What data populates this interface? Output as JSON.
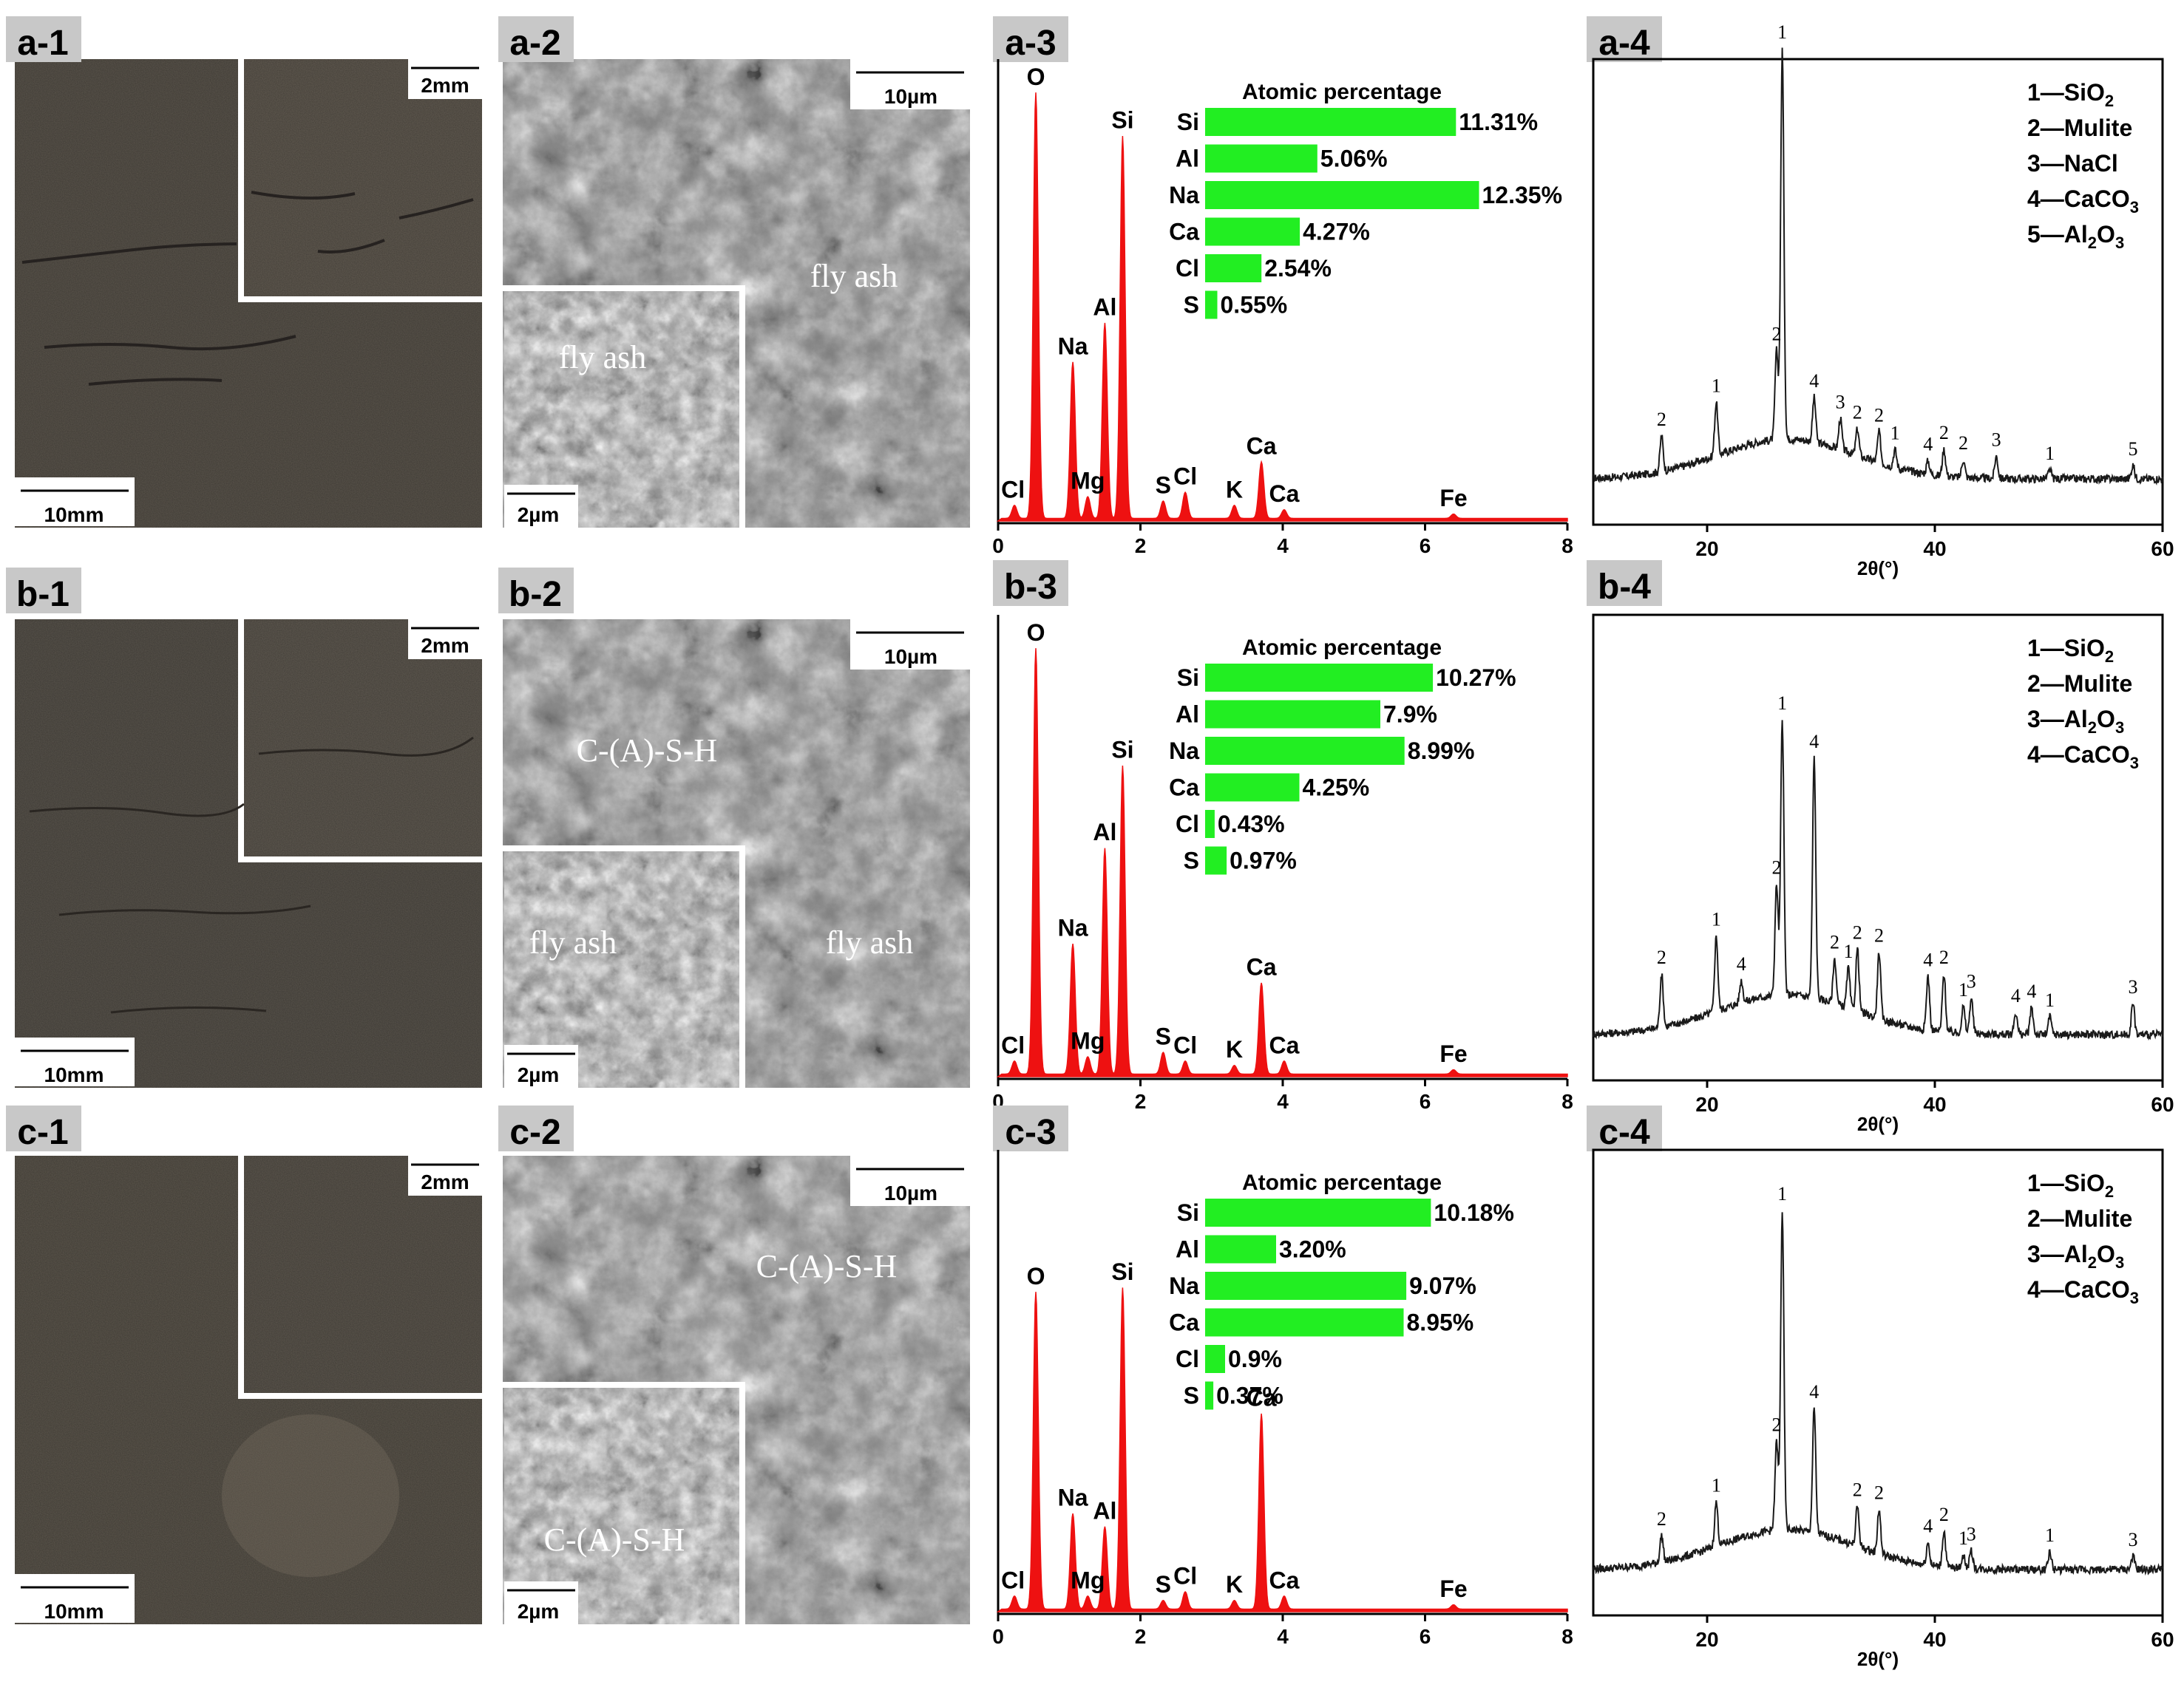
{
  "rows": [
    {
      "id": "a",
      "photo": {
        "label": "a-1",
        "scale_main": "10mm",
        "scale_inset": "2mm"
      },
      "sem": {
        "label": "a-2",
        "scale_main": "10µm",
        "scale_inset": "2µm",
        "text_main": "fly ash",
        "text_inset": "fly ash"
      },
      "eds": {
        "label": "a-3",
        "bar_title": "Atomic percentage",
        "bars": [
          {
            "element": "Si",
            "value": 11.31,
            "text": "11.31%"
          },
          {
            "element": "Al",
            "value": 5.06,
            "text": "5.06%"
          },
          {
            "element": "Na",
            "value": 12.35,
            "text": "12.35%"
          },
          {
            "element": "Ca",
            "value": 4.27,
            "text": "4.27%"
          },
          {
            "element": "Cl",
            "value": 2.54,
            "text": "2.54%"
          },
          {
            "element": "S",
            "value": 0.55,
            "text": "0.55%"
          }
        ],
        "peaks": [
          {
            "label": "Cl",
            "x": 0.23,
            "h": 0.03
          },
          {
            "label": "O",
            "x": 0.53,
            "h": 0.98
          },
          {
            "label": "Na",
            "x": 1.05,
            "h": 0.36
          },
          {
            "label": "Mg",
            "x": 1.26,
            "h": 0.05
          },
          {
            "label": "Al",
            "x": 1.5,
            "h": 0.45
          },
          {
            "label": "Si",
            "x": 1.75,
            "h": 0.88
          },
          {
            "label": "S",
            "x": 2.32,
            "h": 0.04
          },
          {
            "label": "Cl",
            "x": 2.63,
            "h": 0.06
          },
          {
            "label": "K",
            "x": 3.32,
            "h": 0.03
          },
          {
            "label": "Ca",
            "x": 3.7,
            "h": 0.13
          },
          {
            "label": "Ca",
            "x": 4.02,
            "h": 0.02
          },
          {
            "label": "Fe",
            "x": 6.4,
            "h": 0.01
          }
        ],
        "x_ticks": [
          "0",
          "2",
          "4",
          "6",
          "8"
        ]
      },
      "xrd": {
        "label": "a-4",
        "legend": [
          {
            "num": "1",
            "name": "SiO",
            "sub": "2"
          },
          {
            "num": "2",
            "name": "Mulite",
            "sub": ""
          },
          {
            "num": "3",
            "name": "NaCl",
            "sub": ""
          },
          {
            "num": "4",
            "name": "CaCO",
            "sub": "3"
          },
          {
            "num": "5",
            "name": "Al",
            "sub": "2",
            "tail": "O",
            "sub2": "3"
          }
        ],
        "peaks": [
          {
            "t": 16.0,
            "h": 0.08,
            "l": "2"
          },
          {
            "t": 20.8,
            "h": 0.12,
            "l": "1"
          },
          {
            "t": 26.1,
            "h": 0.2,
            "l": "2"
          },
          {
            "t": 26.6,
            "h": 0.88,
            "l": "1"
          },
          {
            "t": 29.4,
            "h": 0.1,
            "l": "4"
          },
          {
            "t": 31.7,
            "h": 0.07,
            "l": "3"
          },
          {
            "t": 33.2,
            "h": 0.06,
            "l": "2"
          },
          {
            "t": 35.1,
            "h": 0.07,
            "l": "2"
          },
          {
            "t": 36.5,
            "h": 0.04,
            "l": "1"
          },
          {
            "t": 39.4,
            "h": 0.03,
            "l": "4"
          },
          {
            "t": 40.8,
            "h": 0.06,
            "l": "2"
          },
          {
            "t": 42.5,
            "h": 0.04,
            "l": "2"
          },
          {
            "t": 45.4,
            "h": 0.05,
            "l": "3"
          },
          {
            "t": 50.1,
            "h": 0.02,
            "l": "1"
          },
          {
            "t": 57.4,
            "h": 0.03,
            "l": "5"
          }
        ],
        "x_ticks": [
          "20",
          "40",
          "60"
        ],
        "xlabel": "2θ(°)"
      }
    },
    {
      "id": "b",
      "photo": {
        "label": "b-1",
        "scale_main": "10mm",
        "scale_inset": "2mm"
      },
      "sem": {
        "label": "b-2",
        "scale_main": "10µm",
        "scale_inset": "2µm",
        "text_main": "C-(A)-S-H",
        "text_inset": "fly ash",
        "text_extra": "fly ash"
      },
      "eds": {
        "label": "b-3",
        "bar_title": "Atomic percentage",
        "bars": [
          {
            "element": "Si",
            "value": 10.27,
            "text": "10.27%"
          },
          {
            "element": "Al",
            "value": 7.9,
            "text": "7.9%"
          },
          {
            "element": "Na",
            "value": 8.99,
            "text": "8.99%"
          },
          {
            "element": "Ca",
            "value": 4.25,
            "text": "4.25%"
          },
          {
            "element": "Cl",
            "value": 0.43,
            "text": "0.43%"
          },
          {
            "element": "S",
            "value": 0.97,
            "text": "0.97%"
          }
        ],
        "peaks": [
          {
            "label": "Cl",
            "x": 0.23,
            "h": 0.03
          },
          {
            "label": "O",
            "x": 0.53,
            "h": 0.98
          },
          {
            "label": "Na",
            "x": 1.05,
            "h": 0.3
          },
          {
            "label": "Mg",
            "x": 1.26,
            "h": 0.04
          },
          {
            "label": "Al",
            "x": 1.5,
            "h": 0.52
          },
          {
            "label": "Si",
            "x": 1.75,
            "h": 0.71
          },
          {
            "label": "S",
            "x": 2.32,
            "h": 0.05
          },
          {
            "label": "Cl",
            "x": 2.63,
            "h": 0.03
          },
          {
            "label": "K",
            "x": 3.32,
            "h": 0.02
          },
          {
            "label": "Ca",
            "x": 3.7,
            "h": 0.21
          },
          {
            "label": "Ca",
            "x": 4.02,
            "h": 0.03
          },
          {
            "label": "Fe",
            "x": 6.4,
            "h": 0.01
          }
        ],
        "x_ticks": [
          "0",
          "2",
          "4",
          "6",
          "8"
        ]
      },
      "xrd": {
        "label": "b-4",
        "legend": [
          {
            "num": "1",
            "name": "SiO",
            "sub": "2"
          },
          {
            "num": "2",
            "name": "Mulite",
            "sub": ""
          },
          {
            "num": "3",
            "name": "Al",
            "sub": "2",
            "tail": "O",
            "sub2": "3"
          },
          {
            "num": "4",
            "name": "CaCO",
            "sub": "3"
          }
        ],
        "peaks": [
          {
            "t": 16.0,
            "h": 0.12,
            "l": "2"
          },
          {
            "t": 20.8,
            "h": 0.17,
            "l": "1"
          },
          {
            "t": 23.0,
            "h": 0.05,
            "l": "4"
          },
          {
            "t": 26.1,
            "h": 0.25,
            "l": "2"
          },
          {
            "t": 26.6,
            "h": 0.62,
            "l": "1"
          },
          {
            "t": 29.4,
            "h": 0.54,
            "l": "4"
          },
          {
            "t": 31.2,
            "h": 0.1,
            "l": "2"
          },
          {
            "t": 32.4,
            "h": 0.09,
            "l": "1"
          },
          {
            "t": 33.2,
            "h": 0.14,
            "l": "2"
          },
          {
            "t": 35.1,
            "h": 0.15,
            "l": "2"
          },
          {
            "t": 39.4,
            "h": 0.12,
            "l": "4"
          },
          {
            "t": 40.8,
            "h": 0.13,
            "l": "2"
          },
          {
            "t": 42.5,
            "h": 0.06,
            "l": "1"
          },
          {
            "t": 43.2,
            "h": 0.08,
            "l": "3"
          },
          {
            "t": 47.1,
            "h": 0.05,
            "l": "4"
          },
          {
            "t": 48.5,
            "h": 0.06,
            "l": "4"
          },
          {
            "t": 50.1,
            "h": 0.04,
            "l": "1"
          },
          {
            "t": 57.4,
            "h": 0.07,
            "l": "3"
          }
        ],
        "x_ticks": [
          "20",
          "40",
          "60"
        ],
        "xlabel": "2θ(°)"
      }
    },
    {
      "id": "c",
      "photo": {
        "label": "c-1",
        "scale_main": "10mm",
        "scale_inset": "2mm"
      },
      "sem": {
        "label": "c-2",
        "scale_main": "10µm",
        "scale_inset": "2µm",
        "text_main": "C-(A)-S-H",
        "text_inset": "C-(A)-S-H"
      },
      "eds": {
        "label": "c-3",
        "bar_title": "Atomic percentage",
        "bars": [
          {
            "element": "Si",
            "value": 10.18,
            "text": "10.18%"
          },
          {
            "element": "Al",
            "value": 3.2,
            "text": "3.20%"
          },
          {
            "element": "Na",
            "value": 9.07,
            "text": "9.07%"
          },
          {
            "element": "Ca",
            "value": 8.95,
            "text": "8.95%"
          },
          {
            "element": "Cl",
            "value": 0.9,
            "text": "0.9%"
          },
          {
            "element": "S",
            "value": 0.37,
            "text": "0.37%"
          }
        ],
        "peaks": [
          {
            "label": "Cl",
            "x": 0.23,
            "h": 0.03
          },
          {
            "label": "O",
            "x": 0.53,
            "h": 0.73
          },
          {
            "label": "Na",
            "x": 1.05,
            "h": 0.22
          },
          {
            "label": "Mg",
            "x": 1.26,
            "h": 0.03
          },
          {
            "label": "Al",
            "x": 1.5,
            "h": 0.19
          },
          {
            "label": "Si",
            "x": 1.75,
            "h": 0.74
          },
          {
            "label": "S",
            "x": 2.32,
            "h": 0.02
          },
          {
            "label": "Cl",
            "x": 2.63,
            "h": 0.04
          },
          {
            "label": "K",
            "x": 3.32,
            "h": 0.02
          },
          {
            "label": "Ca",
            "x": 3.7,
            "h": 0.45
          },
          {
            "label": "Ca",
            "x": 4.02,
            "h": 0.03
          },
          {
            "label": "Fe",
            "x": 6.4,
            "h": 0.01
          }
        ],
        "x_ticks": [
          "0",
          "2",
          "4",
          "6",
          "8"
        ]
      },
      "xrd": {
        "label": "c-4",
        "legend": [
          {
            "num": "1",
            "name": "SiO",
            "sub": "2"
          },
          {
            "num": "2",
            "name": "Mulite",
            "sub": ""
          },
          {
            "num": "3",
            "name": "Al",
            "sub": "2",
            "tail": "O",
            "sub2": "3"
          },
          {
            "num": "4",
            "name": "CaCO",
            "sub": "3"
          }
        ],
        "peaks": [
          {
            "t": 16.0,
            "h": 0.06,
            "l": "2"
          },
          {
            "t": 20.8,
            "h": 0.1,
            "l": "1"
          },
          {
            "t": 26.1,
            "h": 0.2,
            "l": "2"
          },
          {
            "t": 26.6,
            "h": 0.72,
            "l": "1"
          },
          {
            "t": 29.4,
            "h": 0.28,
            "l": "4"
          },
          {
            "t": 33.2,
            "h": 0.09,
            "l": "2"
          },
          {
            "t": 35.1,
            "h": 0.1,
            "l": "2"
          },
          {
            "t": 39.4,
            "h": 0.05,
            "l": "4"
          },
          {
            "t": 40.8,
            "h": 0.08,
            "l": "2"
          },
          {
            "t": 42.5,
            "h": 0.03,
            "l": "1"
          },
          {
            "t": 43.2,
            "h": 0.04,
            "l": "3"
          },
          {
            "t": 50.1,
            "h": 0.04,
            "l": "1"
          },
          {
            "t": 57.4,
            "h": 0.03,
            "l": "3"
          }
        ],
        "x_ticks": [
          "20",
          "40",
          "60"
        ],
        "xlabel": "2θ(°)"
      }
    }
  ],
  "colors": {
    "photo_base": "#5d574e",
    "photo_inset": "#645d53",
    "sem_base": "#7c7c7c",
    "label_bg": "#c8c8c8",
    "eds_peak": "#ee1111",
    "eds_bar": "#22ee22",
    "xrd_line": "#1a1a1a"
  }
}
